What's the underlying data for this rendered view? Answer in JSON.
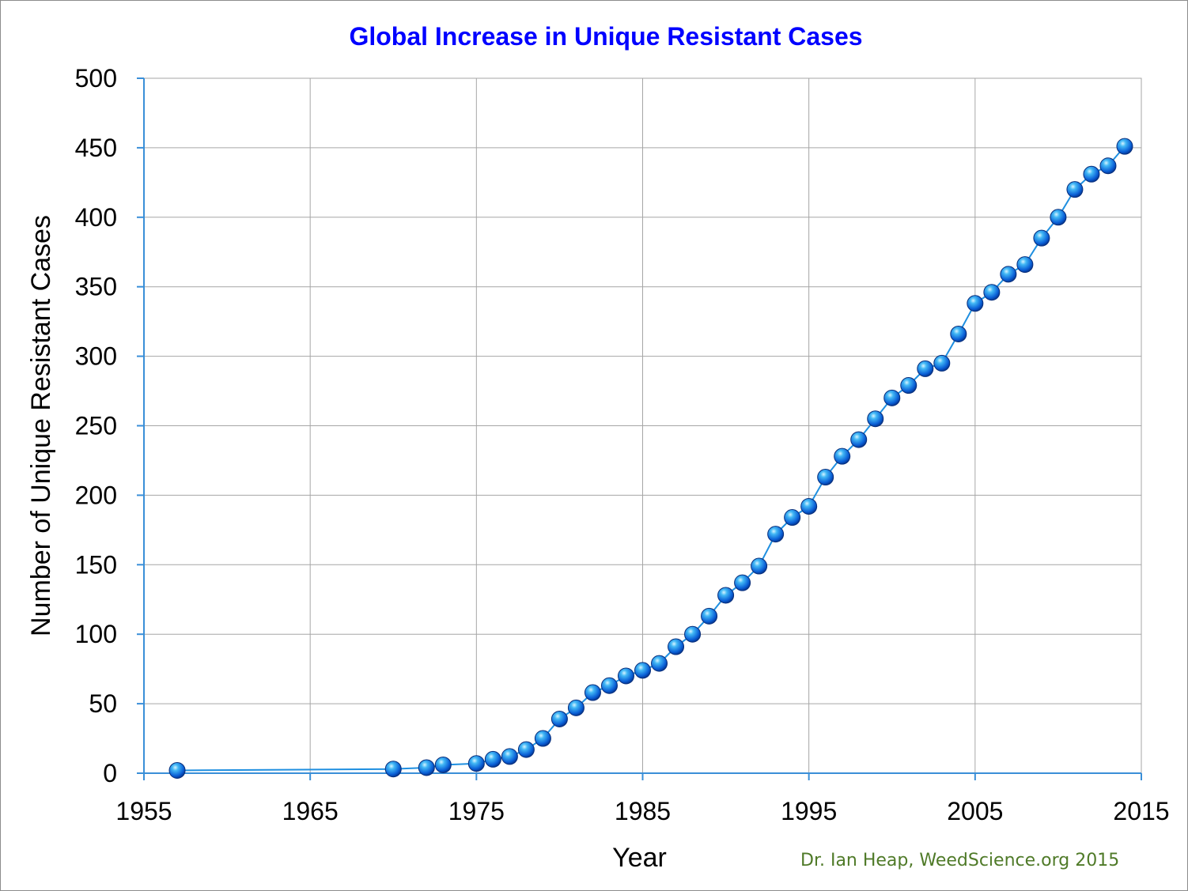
{
  "chart_data": {
    "type": "line",
    "title": "Global Increase in Unique Resistant Cases",
    "xlabel": "Year",
    "ylabel": "Number of Unique Resistant Cases",
    "xlim": [
      1955,
      2015
    ],
    "ylim": [
      0,
      500
    ],
    "xticks": [
      1955,
      1965,
      1975,
      1985,
      1995,
      2005,
      2015
    ],
    "yticks": [
      0,
      50,
      100,
      150,
      200,
      250,
      300,
      350,
      400,
      450,
      500
    ],
    "grid": true,
    "series": [
      {
        "name": "Unique resistant cases",
        "color": "#1f8fe0",
        "x": [
          1957,
          1970,
          1972,
          1973,
          1975,
          1976,
          1977,
          1978,
          1979,
          1980,
          1981,
          1982,
          1983,
          1984,
          1985,
          1986,
          1987,
          1988,
          1989,
          1990,
          1991,
          1992,
          1993,
          1994,
          1995,
          1996,
          1997,
          1998,
          1999,
          2000,
          2001,
          2002,
          2003,
          2004,
          2005,
          2006,
          2007,
          2008,
          2009,
          2010,
          2011,
          2012,
          2013,
          2014
        ],
        "y": [
          2,
          3,
          4,
          6,
          7,
          10,
          12,
          17,
          25,
          39,
          47,
          58,
          63,
          70,
          74,
          79,
          91,
          100,
          113,
          128,
          137,
          149,
          172,
          184,
          192,
          213,
          228,
          240,
          255,
          270,
          279,
          291,
          295,
          316,
          338,
          346,
          359,
          366,
          385,
          400,
          420,
          431,
          437,
          451
        ]
      }
    ]
  },
  "credit": "Dr. Ian Heap, WeedScience.org  2015"
}
